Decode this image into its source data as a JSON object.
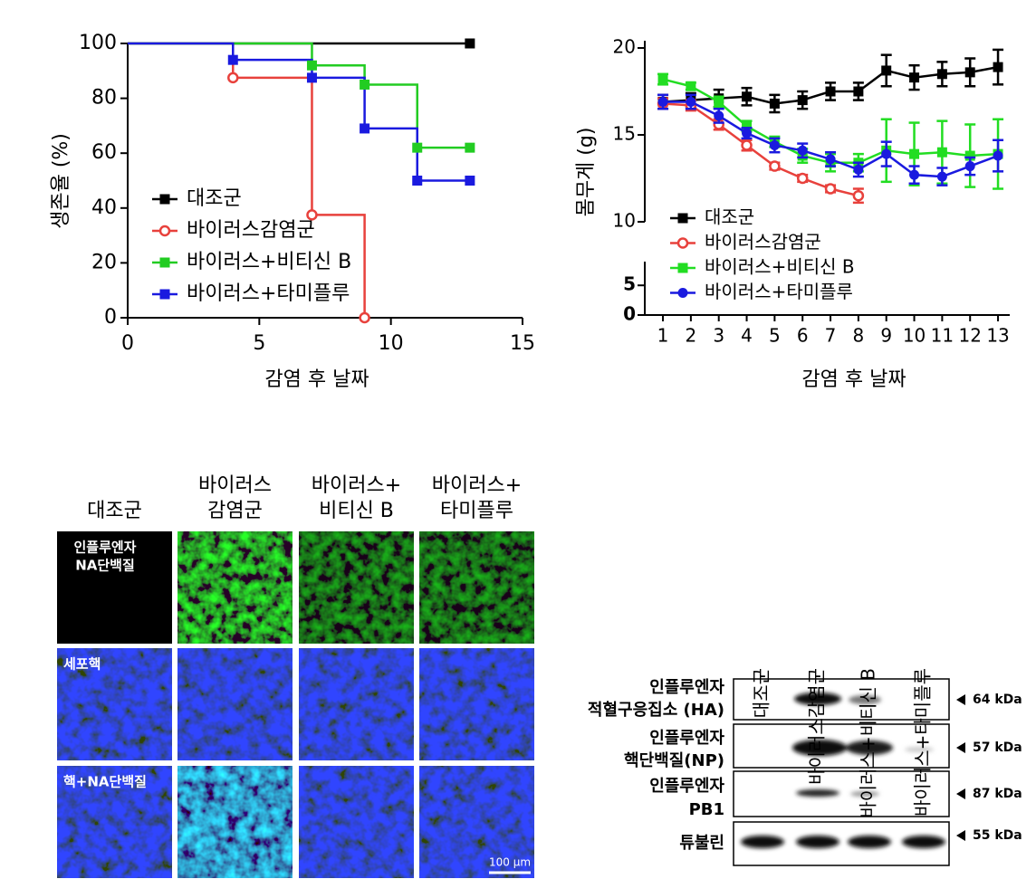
{
  "chart_data": [
    {
      "type": "step",
      "y_label": "생존율 (%)",
      "x_label": "감염 후 날짜",
      "xlim": [
        0,
        15
      ],
      "xticks": [
        0,
        5,
        10,
        15
      ],
      "ylim": [
        0,
        100
      ],
      "yticks": [
        0,
        20,
        40,
        60,
        80,
        100
      ],
      "series": [
        {
          "name": "대조군",
          "color": "#000000",
          "marker": "square",
          "x": [
            0,
            13
          ],
          "values": [
            100,
            100
          ]
        },
        {
          "name": "바이러스감염군",
          "color": "#e8413c",
          "marker": "circle-open",
          "x": [
            0,
            4,
            7,
            9
          ],
          "values": [
            100,
            87.5,
            37.5,
            0
          ]
        },
        {
          "name": "바이러스+비티신 B",
          "color": "#22cc22",
          "marker": "square",
          "x": [
            0,
            7,
            9,
            11,
            13
          ],
          "values": [
            100,
            92,
            85,
            62,
            62
          ]
        },
        {
          "name": "바이러스+타미플루",
          "color": "#1a1adf",
          "marker": "square",
          "x": [
            0,
            4,
            7,
            9,
            11,
            13
          ],
          "values": [
            100,
            94,
            87.5,
            69,
            50,
            50
          ]
        }
      ]
    },
    {
      "type": "line",
      "y_label": "몸무게 (g)",
      "x_label": "감염 후 날짜",
      "xlim": [
        0.35,
        13.42
      ],
      "xticks": [
        1,
        2,
        3,
        4,
        5,
        6,
        7,
        8,
        9,
        10,
        11,
        12,
        13
      ],
      "ylim": [
        10,
        20
      ],
      "yticks": [
        10,
        15,
        20
      ],
      "lower_ylim": [
        0,
        9
      ],
      "lower_yticks": [
        0,
        5
      ],
      "x": [
        1,
        2,
        3,
        4,
        5,
        6,
        7,
        8,
        9,
        10,
        11,
        12,
        13
      ],
      "series": [
        {
          "name": "대조군",
          "color": "#000000",
          "marker": "square",
          "values": [
            16.9,
            17.0,
            17.1,
            17.2,
            16.8,
            17.0,
            17.5,
            17.5,
            18.7,
            18.3,
            18.5,
            18.6,
            18.9
          ],
          "errors": [
            0.4,
            0.4,
            0.5,
            0.5,
            0.5,
            0.5,
            0.5,
            0.5,
            0.9,
            0.7,
            0.7,
            0.8,
            1.0
          ]
        },
        {
          "name": "바이러스감염군",
          "color": "#e8413c",
          "marker": "circle-open",
          "values": [
            16.8,
            16.7,
            15.6,
            14.4,
            13.2,
            12.5,
            11.9,
            11.5,
            null,
            null,
            null,
            null,
            null
          ],
          "errors": [
            0.3,
            0.3,
            0.3,
            0.3,
            0.2,
            0.2,
            0.2,
            0.4,
            null,
            null,
            null,
            null,
            null
          ]
        },
        {
          "name": "바이러스+비티신 B",
          "color": "#22dd22",
          "marker": "square",
          "values": [
            18.2,
            17.8,
            16.9,
            15.5,
            14.6,
            13.8,
            13.4,
            13.4,
            14.1,
            13.9,
            14.0,
            13.8,
            13.9
          ],
          "errors": [
            0.3,
            0.2,
            0.3,
            0.3,
            0.3,
            0.4,
            0.5,
            0.5,
            1.8,
            1.8,
            1.8,
            1.8,
            2.0
          ]
        },
        {
          "name": "바이러스+타미플루",
          "color": "#1a1adf",
          "marker": "circle",
          "values": [
            16.9,
            16.9,
            16.1,
            15.1,
            14.4,
            14.1,
            13.6,
            13.0,
            13.9,
            12.7,
            12.6,
            13.2,
            13.8
          ],
          "errors": [
            0.4,
            0.4,
            0.4,
            0.3,
            0.4,
            0.4,
            0.4,
            0.4,
            0.7,
            0.5,
            0.5,
            0.5,
            0.9
          ]
        }
      ]
    }
  ],
  "microscopy": {
    "columns": [
      [
        "대조군"
      ],
      [
        "바이러스",
        "감염군"
      ],
      [
        "바이러스+",
        "비티신 B"
      ],
      [
        "바이러스+",
        "타미플루"
      ]
    ],
    "rows": [
      [
        "인플루엔자",
        "NA단백질"
      ],
      [
        "세포핵"
      ],
      [
        "핵+NA단백질"
      ]
    ],
    "scale_bar": "100 µm"
  },
  "western_blot": {
    "lanes": [
      "대조군",
      "바이러스감염군",
      "바이러스+비티신 B",
      "바이러스+타미플루"
    ],
    "rows": [
      {
        "label": [
          "인플루엔자",
          "적혈구응집소 (HA)"
        ],
        "size": "64 kDa"
      },
      {
        "label": [
          "인플루엔자",
          "핵단백질(NP)"
        ],
        "size": "57 kDa"
      },
      {
        "label": [
          "인플루엔자",
          "PB1"
        ],
        "size": "87 kDa"
      },
      {
        "label": [
          "튜불린"
        ],
        "size": "55 kDa"
      }
    ]
  }
}
